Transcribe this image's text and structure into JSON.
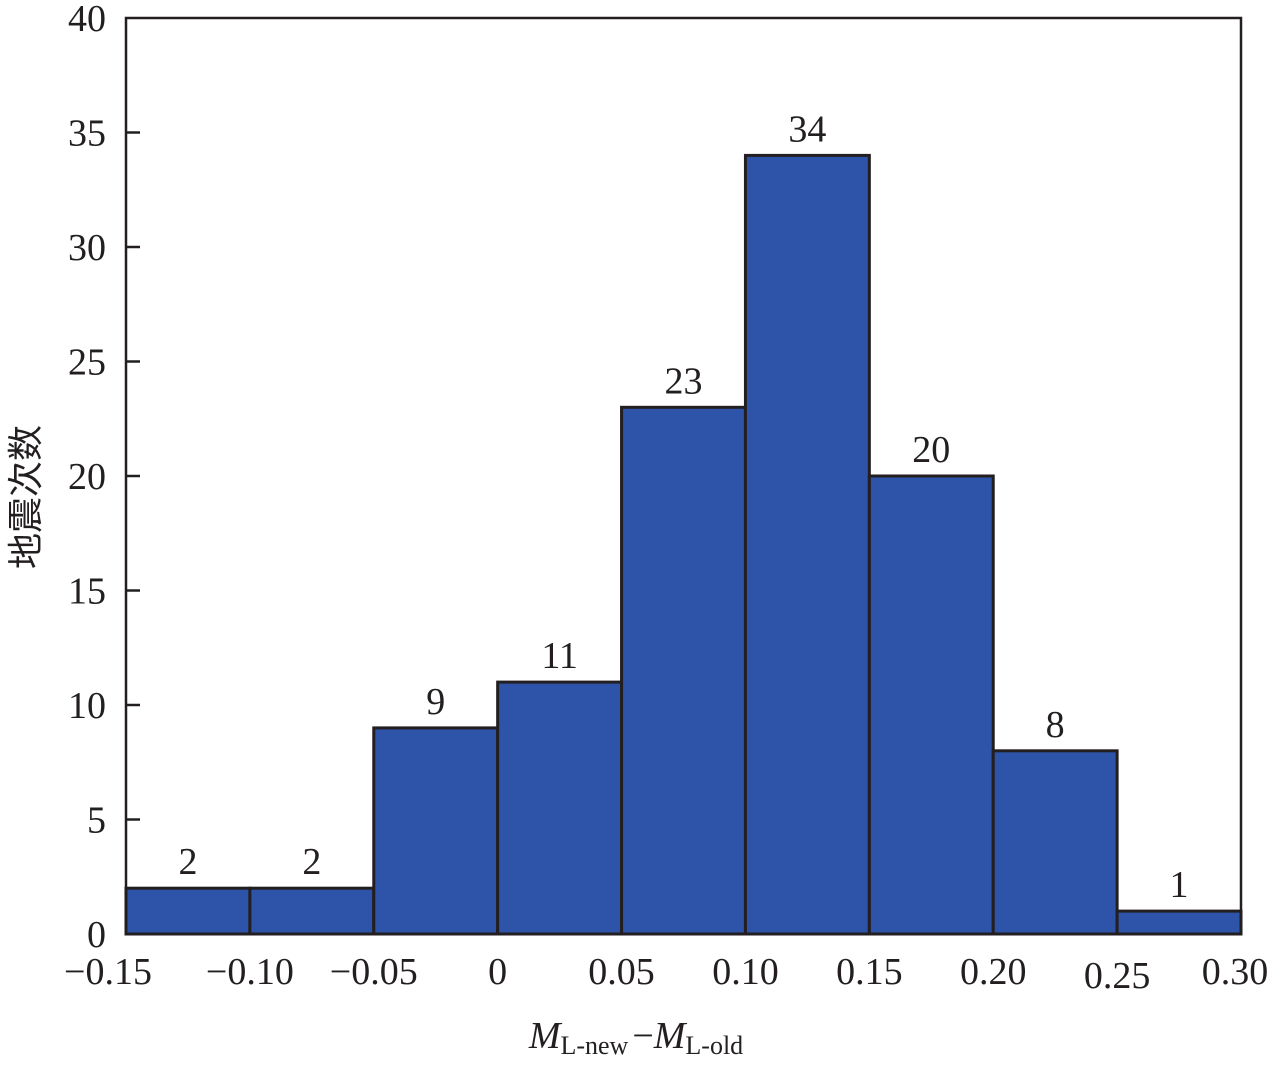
{
  "chart_data": {
    "type": "bar",
    "title": "",
    "xlabel": {
      "main1": "M",
      "sub1": "L-new",
      "minus": "−",
      "main2": "M",
      "sub2": "L-old"
    },
    "ylabel": "地震次数",
    "bin_edges": [
      -0.15,
      -0.1,
      -0.05,
      0,
      0.05,
      0.1,
      0.15,
      0.2,
      0.25,
      0.3
    ],
    "x_tick_labels": [
      "−0.15",
      "−0.10",
      "−0.05",
      "0",
      "0.05",
      "0.10",
      "0.15",
      "0.20",
      "0.25",
      "0.30"
    ],
    "values": [
      2,
      2,
      9,
      11,
      23,
      34,
      20,
      8,
      1
    ],
    "data_labels": [
      "2",
      "2",
      "9",
      "11",
      "23",
      "34",
      "20",
      "8",
      "1"
    ],
    "y_ticks": [
      0,
      5,
      10,
      15,
      20,
      25,
      30,
      35,
      40
    ],
    "ylim": [
      0,
      40
    ],
    "xlim": [
      -0.15,
      0.3
    ],
    "grid": false,
    "colors": {
      "bar": "#2e54a9",
      "edge": "#231f20"
    }
  }
}
